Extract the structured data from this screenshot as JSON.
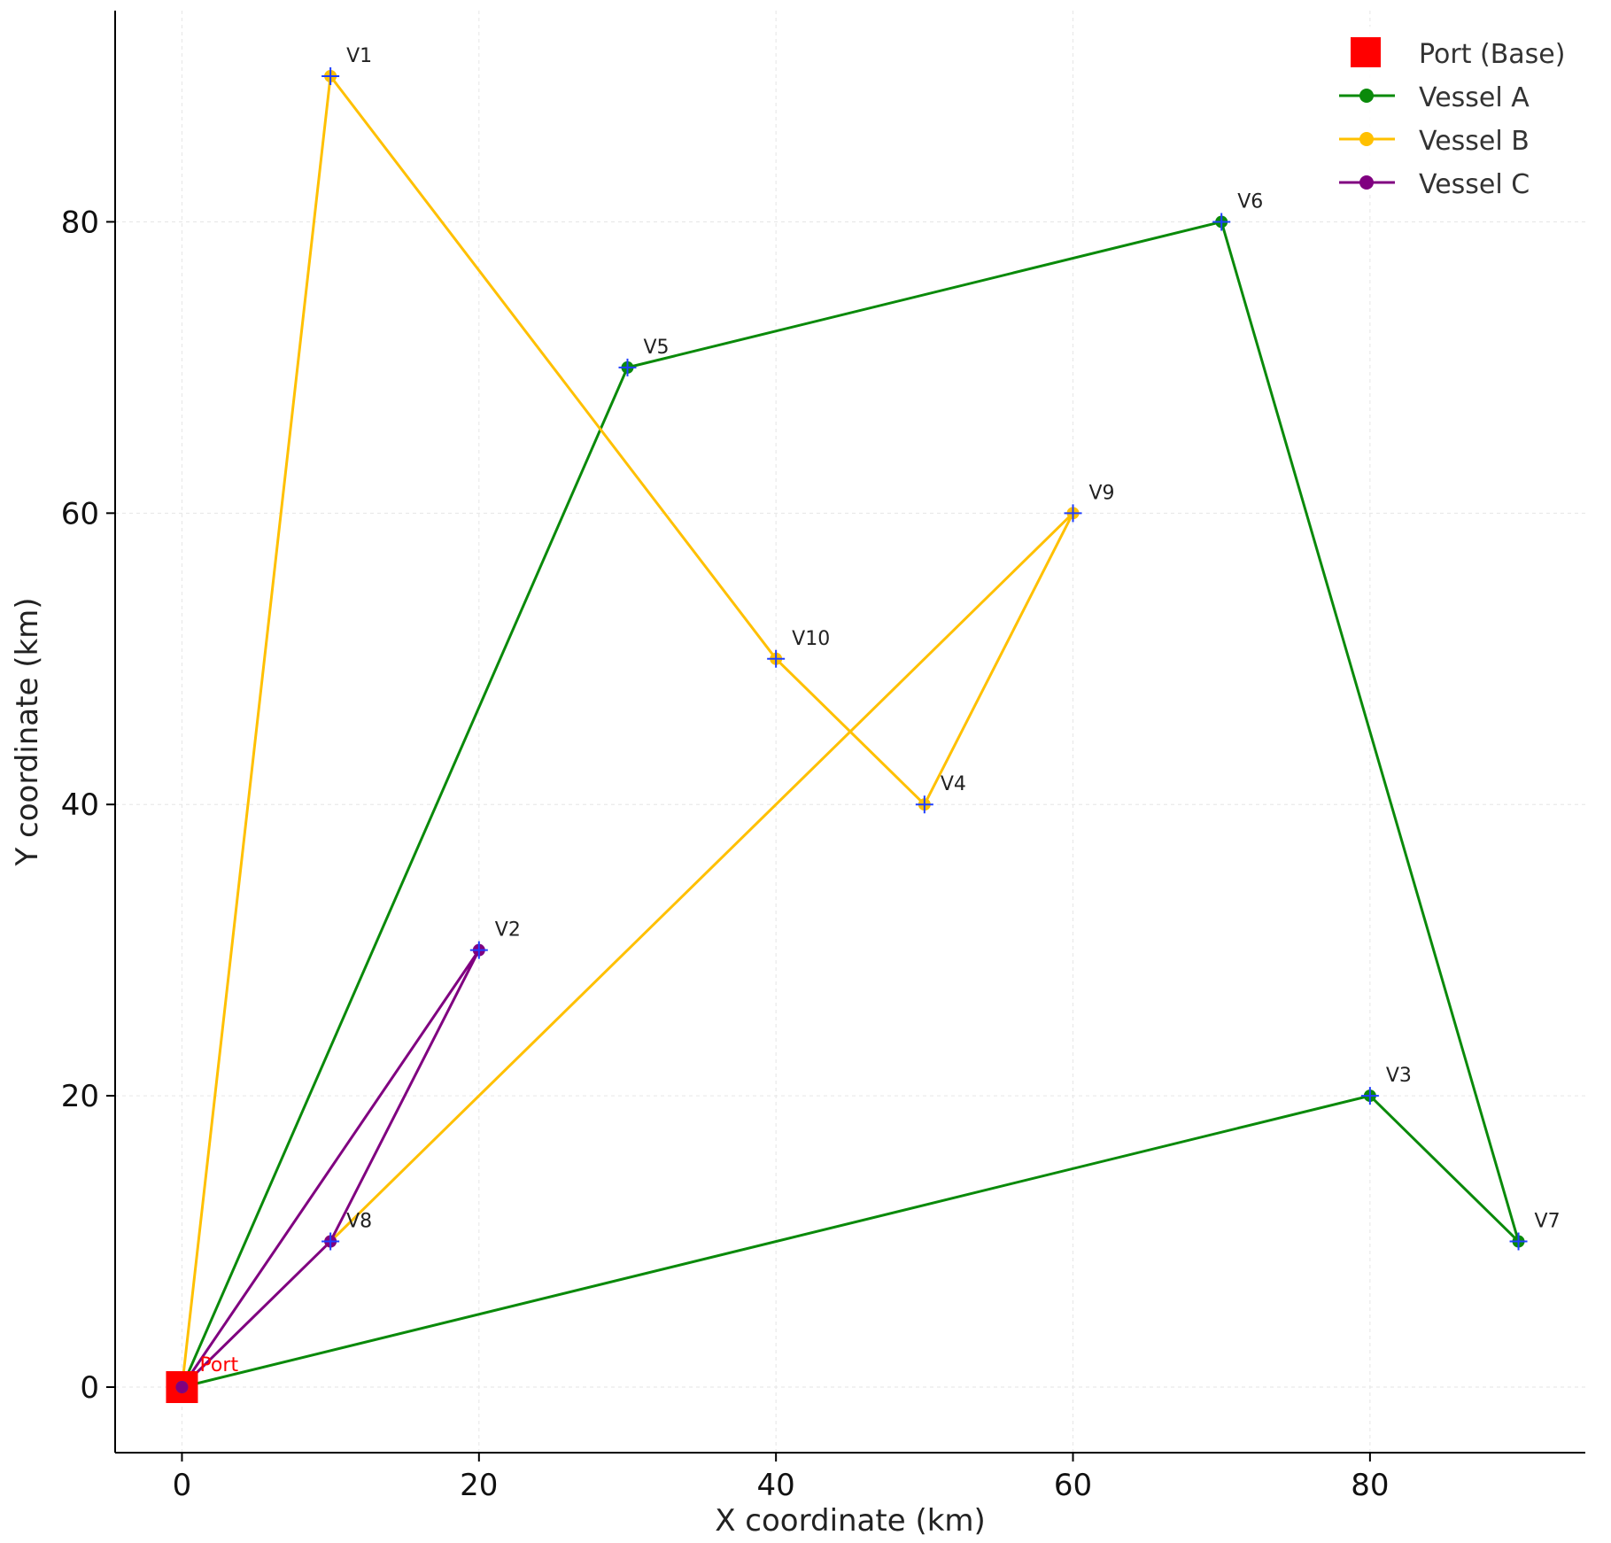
{
  "chart_data": {
    "type": "line",
    "title": "",
    "xlabel": "X coordinate (km)",
    "ylabel": "Y coordinate (km)",
    "xlim": [
      -4.5,
      94.5
    ],
    "ylim": [
      -4.5,
      94.5
    ],
    "xticks": [
      0,
      20,
      40,
      60,
      80
    ],
    "yticks": [
      0,
      20,
      40,
      60,
      80
    ],
    "grid": true,
    "legend_position": "top-right",
    "port": {
      "name": "Port (Base)",
      "label": "Port",
      "x": 0,
      "y": 0,
      "color": "#ff0000"
    },
    "vessels_points": [
      {
        "label": "V1",
        "x": 10,
        "y": 90
      },
      {
        "label": "V2",
        "x": 20,
        "y": 30
      },
      {
        "label": "V3",
        "x": 80,
        "y": 20
      },
      {
        "label": "V4",
        "x": 50,
        "y": 40
      },
      {
        "label": "V5",
        "x": 30,
        "y": 70
      },
      {
        "label": "V6",
        "x": 70,
        "y": 80
      },
      {
        "label": "V7",
        "x": 90,
        "y": 10
      },
      {
        "label": "V8",
        "x": 10,
        "y": 10
      },
      {
        "label": "V9",
        "x": 60,
        "y": 60
      },
      {
        "label": "V10",
        "x": 40,
        "y": 50
      }
    ],
    "series": [
      {
        "name": "Vessel A",
        "color": "#0a8a0a",
        "x": [
          0,
          30,
          70,
          90,
          80,
          0
        ],
        "y": [
          0,
          70,
          80,
          10,
          20,
          0
        ]
      },
      {
        "name": "Vessel B",
        "color": "#ffc000",
        "x": [
          0,
          10,
          40,
          50,
          60,
          10
        ],
        "y": [
          0,
          90,
          50,
          40,
          60,
          10
        ]
      },
      {
        "name": "Vessel C",
        "color": "#800080",
        "x": [
          0,
          20,
          10,
          0
        ],
        "y": [
          0,
          30,
          10,
          0
        ]
      }
    ]
  }
}
